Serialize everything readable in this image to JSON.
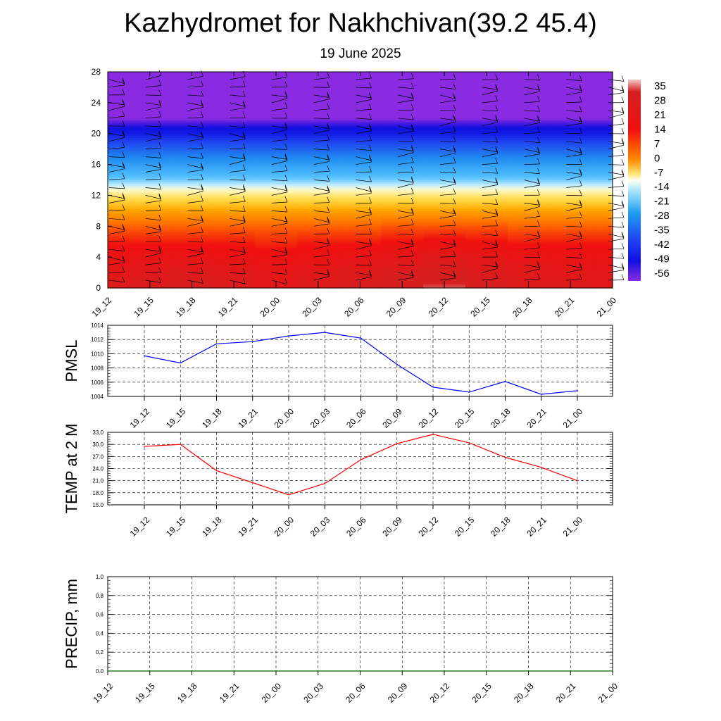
{
  "title": "Kazhydromet for Nakhchivan(39.2 45.4)",
  "subtitle": "19 June 2025",
  "colors": {
    "pmsl_line": "#0000ff",
    "temp_line": "#ff0000",
    "precip_line": "#006400"
  },
  "chart_data": [
    {
      "type": "heatmap",
      "x_tick_labels": [
        "19_12",
        "19_15",
        "19_18",
        "19_21",
        "20_00",
        "20_03",
        "20_06",
        "20_09",
        "20_12",
        "20_15",
        "20_18",
        "20_21",
        "21_00"
      ],
      "y_ticks": [
        0,
        4,
        8,
        12,
        16,
        20,
        24,
        28
      ],
      "ylim": [
        0,
        28
      ],
      "colorbar": {
        "labels": [
          "35",
          "28",
          "21",
          "14",
          "7",
          "0",
          "-7",
          "-14",
          "-21",
          "-28",
          "-35",
          "-42",
          "-49",
          "-56"
        ],
        "range": [
          -63,
          38
        ]
      },
      "layer_values": [
        {
          "level": 0,
          "values": [
            30,
            32,
            33,
            31,
            28,
            30,
            33,
            35,
            36,
            34,
            31,
            30,
            29
          ]
        },
        {
          "level": 2,
          "values": [
            28,
            29,
            30,
            29,
            27,
            28,
            30,
            32,
            33,
            31,
            29,
            28,
            27
          ]
        },
        {
          "level": 4,
          "values": [
            24,
            25,
            25,
            24,
            23,
            24,
            25,
            27,
            28,
            27,
            25,
            24,
            24
          ]
        },
        {
          "level": 6,
          "values": [
            20,
            20,
            20,
            20,
            19,
            20,
            20,
            21,
            22,
            21,
            20,
            20,
            20
          ]
        },
        {
          "level": 8,
          "values": [
            15,
            15,
            15,
            15,
            15,
            15,
            15,
            16,
            16,
            16,
            15,
            15,
            15
          ]
        },
        {
          "level": 10,
          "values": [
            8,
            8,
            8,
            8,
            8,
            8,
            8,
            8,
            8,
            8,
            8,
            8,
            8
          ]
        },
        {
          "level": 12,
          "values": [
            -2,
            -2,
            -2,
            -2,
            -2,
            -2,
            -2,
            -2,
            -2,
            -2,
            -2,
            -2,
            -2
          ]
        },
        {
          "level": 13,
          "values": [
            -9,
            -9,
            -9,
            -9,
            -9,
            -9,
            -9,
            -9,
            -9,
            -9,
            -9,
            -9,
            -9
          ]
        },
        {
          "level": 14,
          "values": [
            -18,
            -18,
            -18,
            -18,
            -18,
            -18,
            -18,
            -18,
            -18,
            -18,
            -18,
            -18,
            -18
          ]
        },
        {
          "level": 16,
          "values": [
            -30,
            -30,
            -30,
            -30,
            -30,
            -30,
            -30,
            -30,
            -30,
            -30,
            -30,
            -30,
            -30
          ]
        },
        {
          "level": 18,
          "values": [
            -42,
            -42,
            -42,
            -42,
            -42,
            -42,
            -42,
            -42,
            -42,
            -42,
            -42,
            -42,
            -42
          ]
        },
        {
          "level": 20,
          "values": [
            -54,
            -54,
            -54,
            -54,
            -54,
            -54,
            -54,
            -54,
            -54,
            -54,
            -54,
            -54,
            -54
          ]
        },
        {
          "level": 21,
          "values": [
            -57,
            -57,
            -57,
            -57,
            -57,
            -57,
            -57,
            -57,
            -57,
            -57,
            -57,
            -57,
            -57
          ]
        },
        {
          "level": 22,
          "values": [
            -63,
            -63,
            -63,
            -63,
            -63,
            -63,
            -63,
            -63,
            -63,
            -63,
            -63,
            -63,
            -63
          ]
        },
        {
          "level": 28,
          "values": [
            -63,
            -63,
            -63,
            -63,
            -63,
            -63,
            -63,
            -63,
            -63,
            -63,
            -63,
            -63,
            -63
          ]
        }
      ],
      "wind_barb_levels": [
        1,
        2,
        3,
        4,
        5,
        6,
        7,
        8,
        9,
        10,
        11,
        12,
        13,
        14,
        15,
        16,
        17,
        18,
        19,
        20,
        21,
        22,
        23,
        24,
        25,
        26,
        27
      ]
    },
    {
      "type": "line",
      "ylabel": "PMSL",
      "ylim": [
        1004,
        1014
      ],
      "y_ticks": [
        1004,
        1006,
        1008,
        1010,
        1012,
        1014
      ],
      "x": [
        "19_12",
        "19_15",
        "19_18",
        "19_21",
        "20_00",
        "20_03",
        "20_06",
        "20_09",
        "20_12",
        "20_15",
        "20_18",
        "20_21",
        "21_00"
      ],
      "values": [
        1009.7,
        1008.7,
        1011.4,
        1011.7,
        1012.5,
        1013.0,
        1012.2,
        1008.5,
        1005.3,
        1004.6,
        1006.1,
        1004.3,
        1004.8
      ],
      "grid": true
    },
    {
      "type": "line",
      "ylabel": "TEMP at 2 M",
      "ylim": [
        15.0,
        33.0
      ],
      "y_ticks": [
        "15.0",
        "18.0",
        "21.0",
        "24.0",
        "27.0",
        "30.0",
        "33.0"
      ],
      "x": [
        "19_12",
        "19_15",
        "19_18",
        "19_21",
        "20_00",
        "20_03",
        "20_06",
        "20_09",
        "20_12",
        "20_15",
        "20_18",
        "20_21",
        "21_00"
      ],
      "values": [
        29.5,
        30.0,
        23.5,
        20.5,
        17.5,
        20.3,
        26.2,
        30.2,
        32.5,
        30.4,
        26.8,
        24.3,
        21.0
      ],
      "grid": true
    },
    {
      "type": "line",
      "ylabel": "PRECIP, mm",
      "ylim": [
        0,
        1.0
      ],
      "y_ticks": [
        "0.0",
        "0.2",
        "0.4",
        "0.6",
        "0.8",
        "1.0"
      ],
      "x": [
        "19_12",
        "19_15",
        "19_18",
        "19_21",
        "20_00",
        "20_03",
        "20_06",
        "20_09",
        "20_12",
        "20_15",
        "20_18",
        "20_21",
        "21_00"
      ],
      "values": [
        0,
        0,
        0,
        0,
        0,
        0,
        0,
        0,
        0,
        0,
        0,
        0,
        0
      ],
      "grid": true
    }
  ]
}
